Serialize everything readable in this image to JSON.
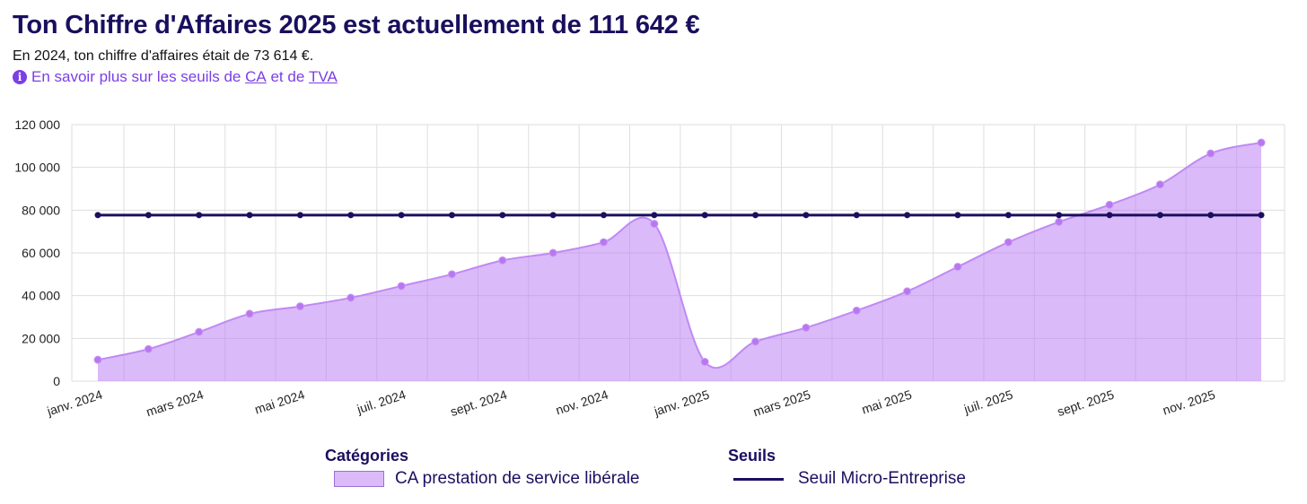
{
  "header": {
    "title": "Ton Chiffre d'Affaires 2025 est actuellement de 111 642 €",
    "subtitle": "En 2024, ton chiffre d'affaires était de 73 614 €.",
    "info_prefix": "En savoir plus sur les seuils de ",
    "info_link_ca": "CA",
    "info_middle": " et de ",
    "info_link_tva": "TVA"
  },
  "legend": {
    "categories_title": "Catégories",
    "categories_item": "CA prestation de service libérale",
    "seuils_title": "Seuils",
    "seuils_item": "Seuil Micro-Entreprise"
  },
  "colors": {
    "area_fill": "rgba(190,130,245,0.55)",
    "area_line": "#c089f5",
    "area_point": "#b877f0",
    "threshold": "#1a0f5e",
    "grid": "#dedede",
    "accent": "#7b3fe4"
  },
  "chart_data": {
    "type": "area",
    "x": [
      "2024-01",
      "2024-02",
      "2024-03",
      "2024-04",
      "2024-05",
      "2024-06",
      "2024-07",
      "2024-08",
      "2024-09",
      "2024-10",
      "2024-11",
      "2024-12",
      "2025-01",
      "2025-02",
      "2025-03",
      "2025-04",
      "2025-05",
      "2025-06",
      "2025-07",
      "2025-08",
      "2025-09",
      "2025-10",
      "2025-11",
      "2025-12"
    ],
    "x_tick_labels": [
      "janv. 2024",
      "mars 2024",
      "mai 2024",
      "juil. 2024",
      "sept. 2024",
      "nov. 2024",
      "janv. 2025",
      "mars 2025",
      "mai 2025",
      "juil. 2025",
      "sept. 2025",
      "nov. 2025"
    ],
    "series": [
      {
        "name": "CA prestation de service libérale",
        "type": "area",
        "values": [
          10000,
          15000,
          23000,
          31500,
          35000,
          39000,
          44500,
          50000,
          56500,
          60000,
          65000,
          73600,
          9000,
          18500,
          25000,
          33000,
          42000,
          53500,
          65000,
          74500,
          82500,
          92000,
          106500,
          111600
        ]
      },
      {
        "name": "Seuil Micro-Entreprise",
        "type": "line",
        "values": [
          77700,
          77700,
          77700,
          77700,
          77700,
          77700,
          77700,
          77700,
          77700,
          77700,
          77700,
          77700,
          77700,
          77700,
          77700,
          77700,
          77700,
          77700,
          77700,
          77700,
          77700,
          77700,
          77700,
          77700
        ]
      }
    ],
    "ylim": [
      0,
      120000
    ],
    "y_ticks": [
      0,
      20000,
      40000,
      60000,
      80000,
      100000,
      120000
    ],
    "y_tick_labels": [
      "0",
      "20 000",
      "40 000",
      "60 000",
      "80 000",
      "100 000",
      "120 000"
    ],
    "grid": true,
    "legend_position": "bottom"
  }
}
